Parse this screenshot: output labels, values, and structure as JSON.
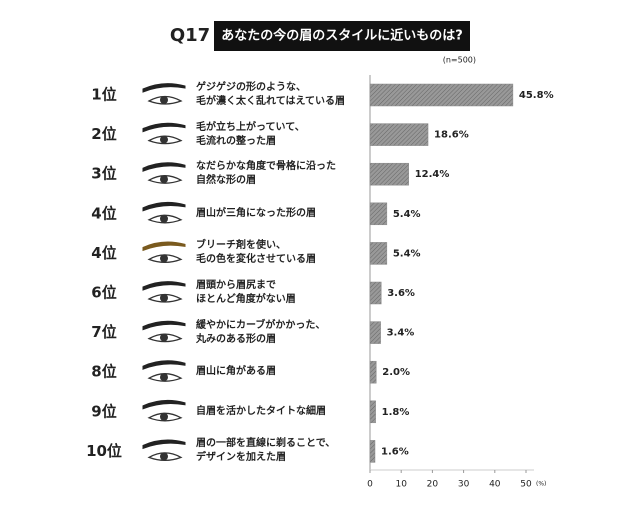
{
  "chart_data": {
    "type": "bar",
    "orientation": "horizontal",
    "question": "Q17",
    "title": "あなたの今の眉のスタイルに近いものは?",
    "subtitle": "(n=500)",
    "ranks": [
      "1位",
      "2位",
      "3位",
      "4位",
      "4位",
      "6位",
      "7位",
      "8位",
      "9位",
      "10位"
    ],
    "categories": [
      "ゲジゲジの形のような、\n毛が濃く太く乱れてはえている眉",
      "毛が立ち上がっていて、\n毛流れの整った眉",
      "なだらかな角度で骨格に沿った\n自然な形の眉",
      "眉山が三角になった形の眉",
      "ブリーチ剤を使い、\n毛の色を変化させている眉",
      "眉頭から眉尻まで\nほとんど角度がない眉",
      "緩やかにカーブがかかった、\n丸みのある形の眉",
      "眉山に角がある眉",
      "自眉を活かしたタイトな細眉",
      "眉の一部を直線に剃ることで、\nデザインを加えた眉"
    ],
    "values": [
      45.8,
      18.6,
      12.4,
      5.4,
      5.4,
      3.6,
      3.4,
      2.0,
      1.8,
      1.6
    ],
    "value_labels": [
      "45.8%",
      "18.6%",
      "12.4%",
      "5.4%",
      "5.4%",
      "3.6%",
      "3.4%",
      "2.0%",
      "1.8%",
      "1.6%"
    ],
    "color": "#8a8a8a",
    "xlim": [
      0,
      50
    ],
    "xticks": [
      0,
      10,
      20,
      30,
      40,
      50
    ],
    "x_unit": "(%)"
  }
}
